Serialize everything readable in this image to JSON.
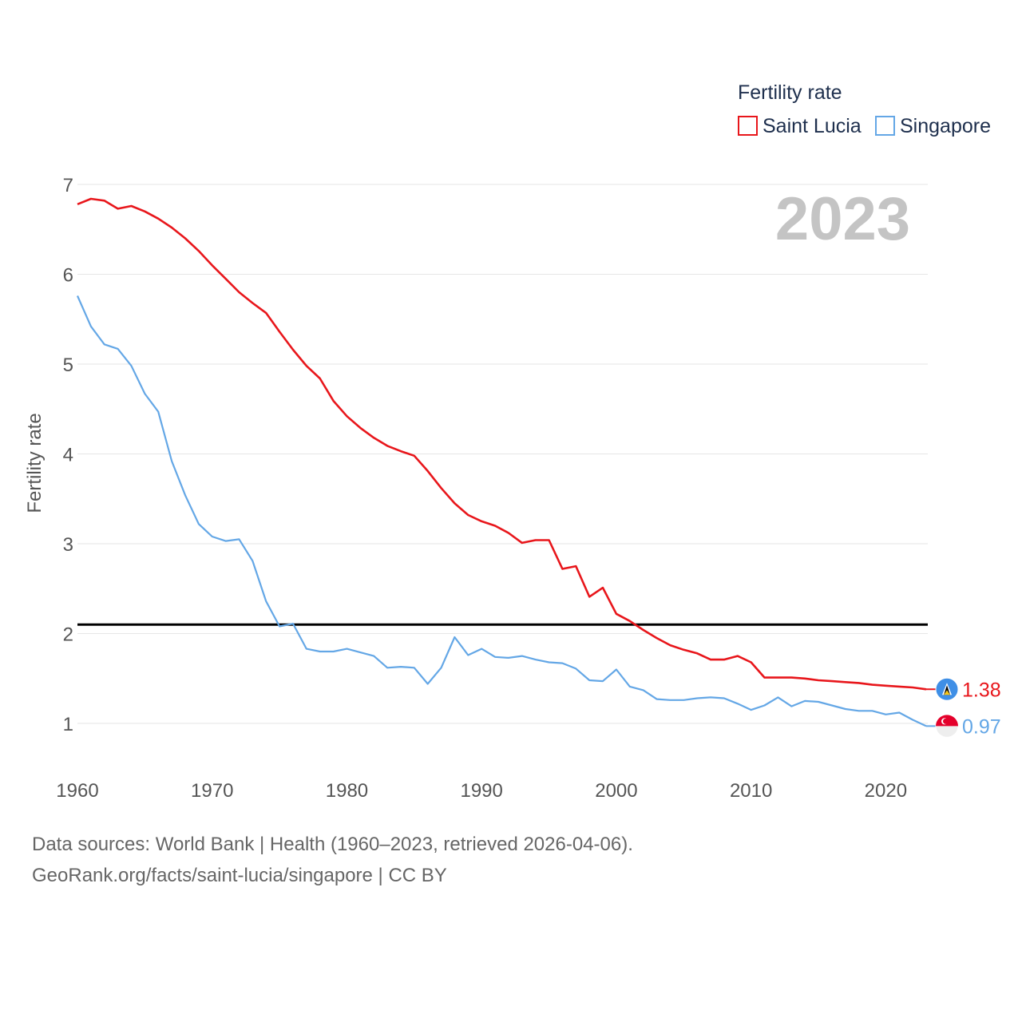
{
  "chart_data": {
    "type": "line",
    "year_label": "2023",
    "legend_title": "Fertility rate",
    "ylabel": "Fertility rate",
    "xlim": [
      1960,
      2023
    ],
    "ylim": [
      0.5,
      7.1
    ],
    "yticks": [
      1,
      2,
      3,
      4,
      5,
      6,
      7
    ],
    "xticks": [
      1960,
      1970,
      1980,
      1990,
      2000,
      2010,
      2020
    ],
    "reference_line": 2.1,
    "x": [
      1960,
      1961,
      1962,
      1963,
      1964,
      1965,
      1966,
      1967,
      1968,
      1969,
      1970,
      1971,
      1972,
      1973,
      1974,
      1975,
      1976,
      1977,
      1978,
      1979,
      1980,
      1981,
      1982,
      1983,
      1984,
      1985,
      1986,
      1987,
      1988,
      1989,
      1990,
      1991,
      1992,
      1993,
      1994,
      1995,
      1996,
      1997,
      1998,
      1999,
      2000,
      2001,
      2002,
      2003,
      2004,
      2005,
      2006,
      2007,
      2008,
      2009,
      2010,
      2011,
      2012,
      2013,
      2014,
      2015,
      2016,
      2017,
      2018,
      2019,
      2020,
      2021,
      2022,
      2023
    ],
    "series": [
      {
        "name": "Saint Lucia",
        "color": "#e8161b",
        "end_label": "1.38",
        "values": [
          6.78,
          6.84,
          6.82,
          6.73,
          6.76,
          6.7,
          6.62,
          6.52,
          6.4,
          6.26,
          6.1,
          5.95,
          5.8,
          5.68,
          5.57,
          5.36,
          5.16,
          4.98,
          4.84,
          4.59,
          4.42,
          4.29,
          4.18,
          4.09,
          4.03,
          3.98,
          3.81,
          3.62,
          3.45,
          3.32,
          3.25,
          3.2,
          3.12,
          3.01,
          3.04,
          3.04,
          2.72,
          2.75,
          2.41,
          2.51,
          2.22,
          2.14,
          2.04,
          1.95,
          1.87,
          1.82,
          1.78,
          1.71,
          1.71,
          1.75,
          1.68,
          1.51,
          1.51,
          1.51,
          1.5,
          1.48,
          1.47,
          1.46,
          1.45,
          1.43,
          1.42,
          1.41,
          1.4,
          1.38
        ]
      },
      {
        "name": "Singapore",
        "color": "#64a7e6",
        "end_label": "0.97",
        "values": [
          5.76,
          5.42,
          5.22,
          5.17,
          4.98,
          4.67,
          4.47,
          3.92,
          3.54,
          3.22,
          3.08,
          3.03,
          3.05,
          2.81,
          2.36,
          2.08,
          2.11,
          1.83,
          1.8,
          1.8,
          1.83,
          1.79,
          1.75,
          1.62,
          1.63,
          1.62,
          1.44,
          1.62,
          1.96,
          1.76,
          1.83,
          1.74,
          1.73,
          1.75,
          1.71,
          1.68,
          1.67,
          1.61,
          1.48,
          1.47,
          1.6,
          1.41,
          1.37,
          1.27,
          1.26,
          1.26,
          1.28,
          1.29,
          1.28,
          1.22,
          1.15,
          1.2,
          1.29,
          1.19,
          1.25,
          1.24,
          1.2,
          1.16,
          1.14,
          1.14,
          1.1,
          1.12,
          1.04,
          0.97
        ]
      }
    ]
  },
  "source": {
    "line1": "Data sources: World Bank | Health (1960–2023, retrieved 2026-04-06).",
    "line2": "GeoRank.org/facts/saint-lucia/singapore | CC BY"
  }
}
